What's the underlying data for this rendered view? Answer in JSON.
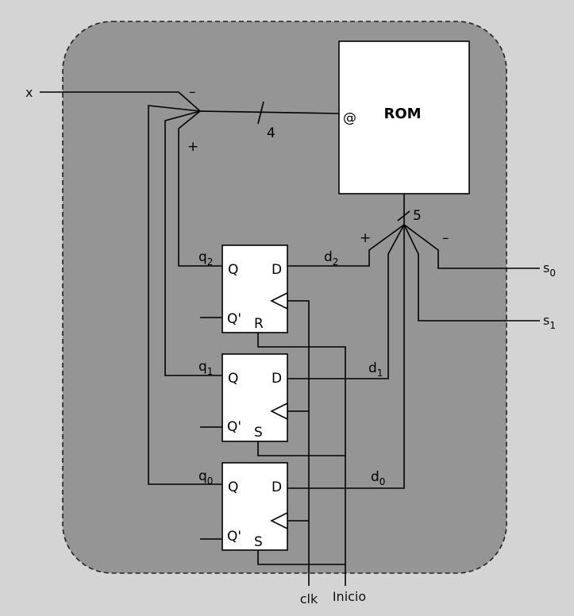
{
  "inputs": {
    "x": "x",
    "clk": "clk",
    "inicio": "Inicio"
  },
  "outputs": {
    "s0_base": "s",
    "s0_sub": "0",
    "s1_base": "s",
    "s1_sub": "1"
  },
  "rom": {
    "title": "ROM",
    "address_port": "@",
    "address_width": "4",
    "data_width": "5"
  },
  "mux": {
    "minus": "–",
    "plus": "+"
  },
  "flipflops": [
    {
      "q_base": "q",
      "q_sub": "2",
      "d_base": "d",
      "d_sub": "2",
      "port_q": "Q",
      "port_qn": "Q'",
      "port_d": "D",
      "reset_label": "R"
    },
    {
      "q_base": "q",
      "q_sub": "1",
      "d_base": "d",
      "d_sub": "1",
      "port_q": "Q",
      "port_qn": "Q'",
      "port_d": "D",
      "reset_label": "S"
    },
    {
      "q_base": "q",
      "q_sub": "0",
      "d_base": "d",
      "d_sub": "0",
      "port_q": "Q",
      "port_qn": "Q'",
      "port_d": "D",
      "reset_label": "S"
    }
  ],
  "colors": {
    "background": "#d4d4d4",
    "panel": "#959595",
    "component": "#ffffff",
    "wire": "#000000"
  }
}
